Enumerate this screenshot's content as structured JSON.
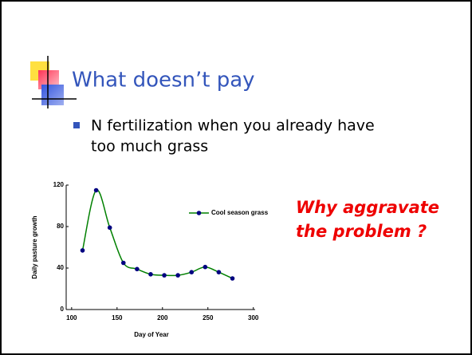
{
  "slide": {
    "title": "What doesn’t pay",
    "bullet_lines": [
      "N fertilization when you already have",
      "too much grass"
    ],
    "callout_lines": [
      "Why aggravate",
      "the problem ?"
    ]
  },
  "chart_data": {
    "type": "line",
    "xlabel": "Day of Year",
    "ylabel": "Daily pasture growth",
    "x": [
      112,
      127,
      142,
      157,
      172,
      187,
      202,
      217,
      232,
      247,
      262,
      277
    ],
    "series": [
      {
        "name": "Cool season grass",
        "color": "#008000",
        "marker_color": "#000080",
        "values": [
          57,
          115,
          79,
          45,
          39,
          34,
          33,
          33,
          36,
          41,
          36,
          30
        ]
      }
    ],
    "xlim": [
      94,
      302
    ],
    "xticks": [
      100,
      150,
      200,
      250,
      300
    ],
    "ylim": [
      0,
      120
    ],
    "yticks": [
      0,
      40,
      80,
      120
    ],
    "smooth": true,
    "legend": "inside"
  }
}
